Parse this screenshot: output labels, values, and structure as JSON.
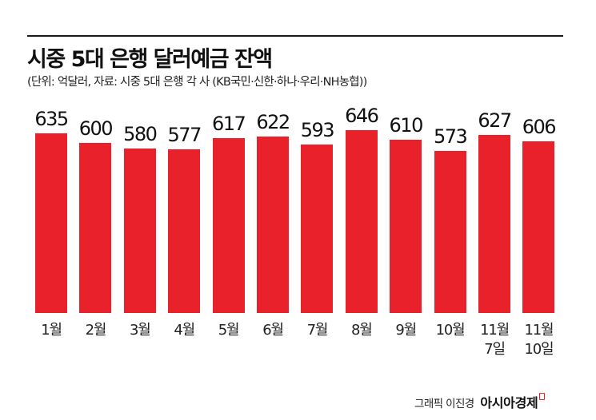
{
  "header": {
    "title": "시중 5대 은행 달러예금 잔액",
    "subtitle": "(단위: 억달러, 자료: 시중 5대 은행 각 사 (KB국민·신한·하나·우리·NH농협))"
  },
  "footer": {
    "credit": "그래픽 이진경",
    "brand": "아시아경제"
  },
  "colors": {
    "bar": "#e8212b",
    "rule": "#1a1a1a"
  },
  "chart_data": {
    "type": "bar",
    "title": "시중 5대 은행 달러예금 잔액",
    "subtitle": "(단위: 억달러, 자료: 시중 5대 은행 각 사 (KB국민·신한·하나·우리·NH농협))",
    "categories": [
      "1월",
      "2월",
      "3월",
      "4월",
      "5월",
      "6월",
      "7월",
      "8월",
      "9월",
      "10월",
      "11월\n7일",
      "11월\n10일"
    ],
    "values": [
      635,
      600,
      580,
      577,
      617,
      622,
      593,
      646,
      610,
      573,
      627,
      606
    ],
    "xlabel": "",
    "ylabel": "억달러",
    "unit": "억달러",
    "ylim": [
      0,
      700
    ],
    "grid": false,
    "legend": "none",
    "data_labels": true
  }
}
